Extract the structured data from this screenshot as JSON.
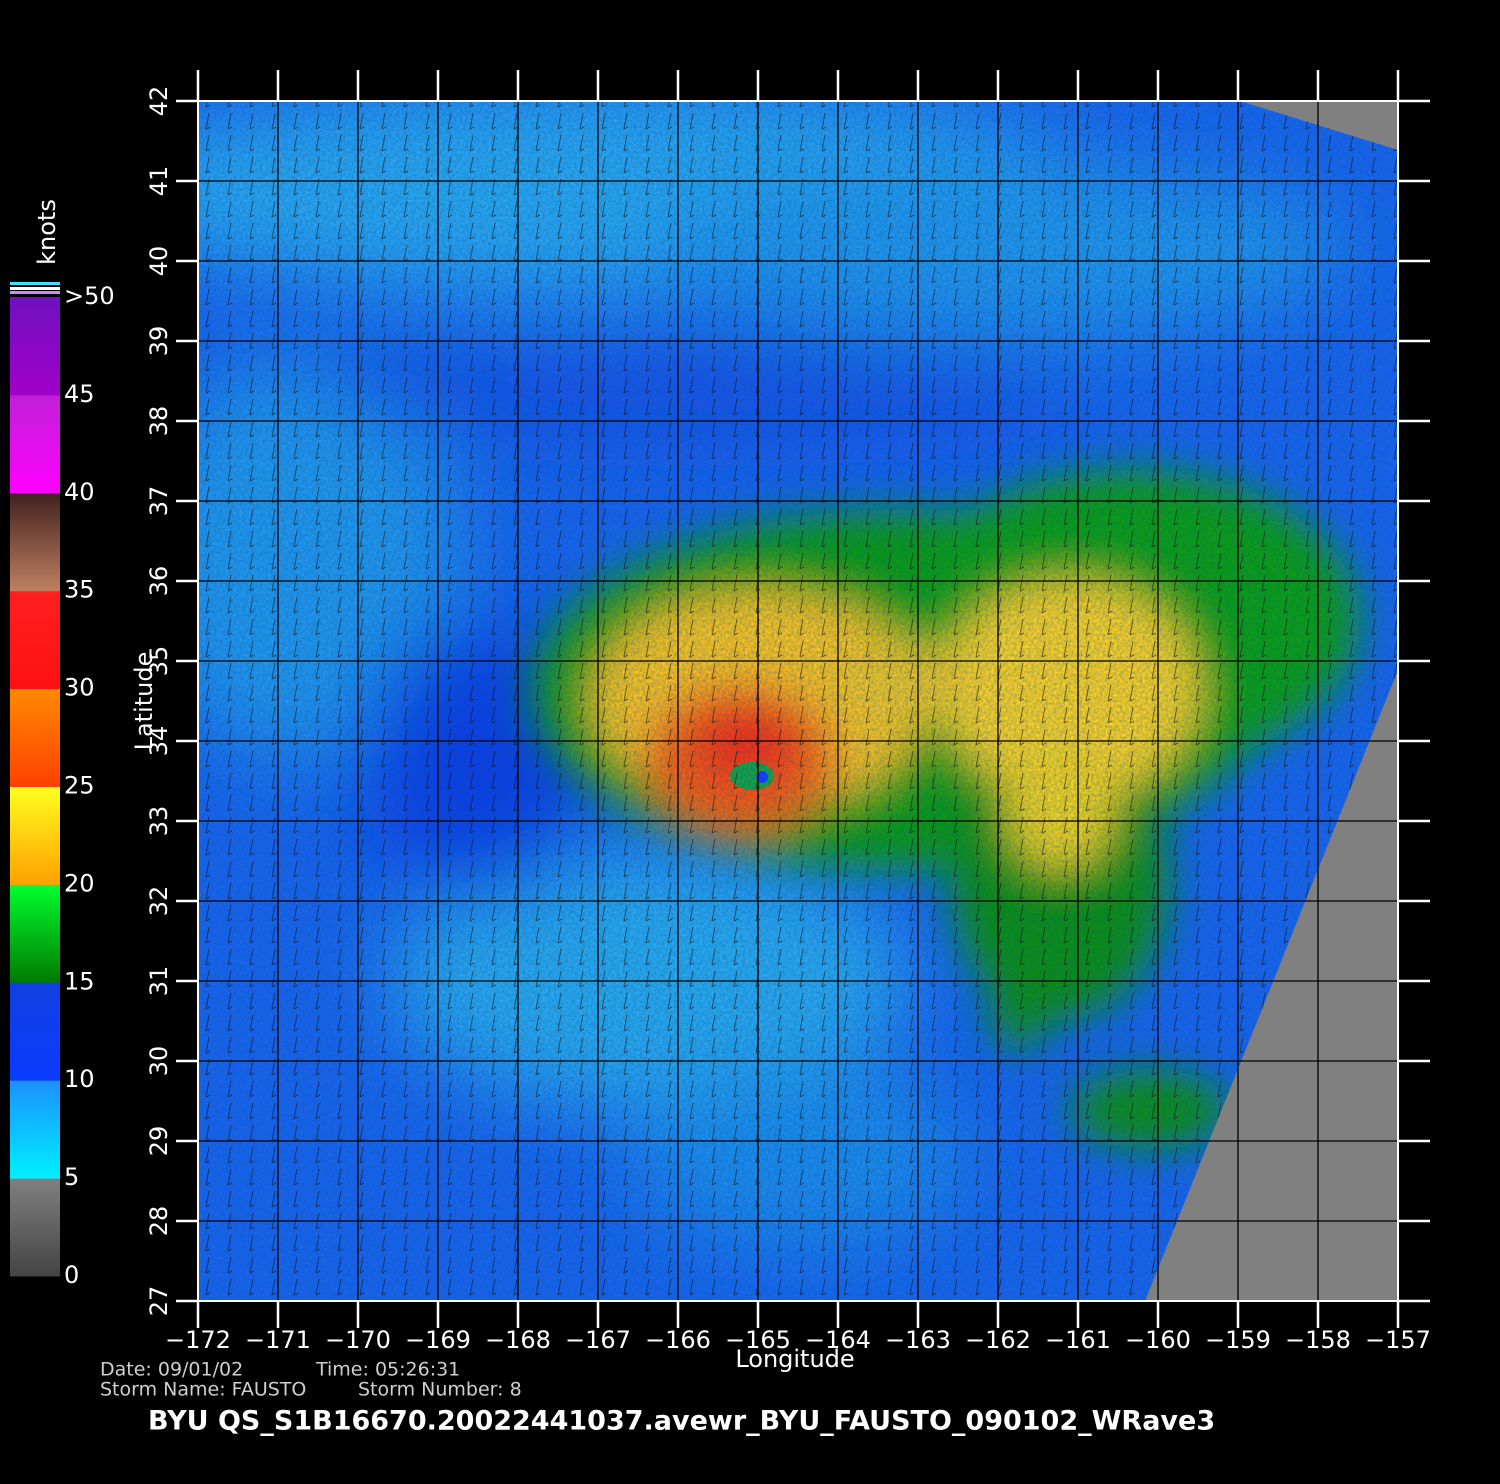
{
  "map": {
    "x_axis": {
      "label": "Longitude",
      "lim": [
        -172,
        -157
      ],
      "ticks": [
        {
          "value": -172,
          "label": "−172"
        },
        {
          "value": -171,
          "label": "−171"
        },
        {
          "value": -170,
          "label": "−170"
        },
        {
          "value": -169,
          "label": "−169"
        },
        {
          "value": -168,
          "label": "−168"
        },
        {
          "value": -167,
          "label": "−167"
        },
        {
          "value": -166,
          "label": "−166"
        },
        {
          "value": -165,
          "label": "−165"
        },
        {
          "value": -164,
          "label": "−164"
        },
        {
          "value": -163,
          "label": "−163"
        },
        {
          "value": -162,
          "label": "−162"
        },
        {
          "value": -161,
          "label": "−161"
        },
        {
          "value": -160,
          "label": "−160"
        },
        {
          "value": -159,
          "label": "−159"
        },
        {
          "value": -158,
          "label": "−158"
        },
        {
          "value": -157,
          "label": "−157"
        }
      ]
    },
    "y_axis": {
      "label": "Latitude",
      "lim": [
        27,
        42
      ],
      "ticks": [
        27,
        28,
        29,
        30,
        31,
        32,
        33,
        34,
        35,
        36,
        37,
        38,
        39,
        40,
        41,
        42
      ]
    },
    "grid": true,
    "colorbar": {
      "label": "knots",
      "lim": [
        0,
        50
      ],
      "ticks": [
        0,
        5,
        10,
        15,
        20,
        25,
        30,
        35,
        40,
        45,
        {
          "value": 50,
          "label": ">50"
        }
      ],
      "colors": [
        [
          "#444444",
          "#808080"
        ],
        [
          "#00f0ff",
          "#1a90ff"
        ],
        [
          "#0a3cff",
          "#1040e0"
        ],
        [
          "#007a00",
          "#00ff30"
        ],
        [
          "#ffa000",
          "#ffff20"
        ],
        [
          "#ff4000",
          "#ff8a00"
        ],
        [
          "#ff1010",
          "#ff2020"
        ],
        [
          "#c08060",
          "#402020"
        ],
        [
          "#ff00ff",
          "#c020d8"
        ],
        [
          "#a000c8",
          "#7010c0"
        ]
      ]
    }
  },
  "info": {
    "date": "Date: 09/01/02",
    "time": "Time: 05:26:31",
    "storm_name": "Storm Name: FAUSTO",
    "storm_number": "Storm Number: 8",
    "title": "BYU QS_S1B16670.20022441037.avewr_BYU_FAUSTO_090102_WRave3"
  }
}
